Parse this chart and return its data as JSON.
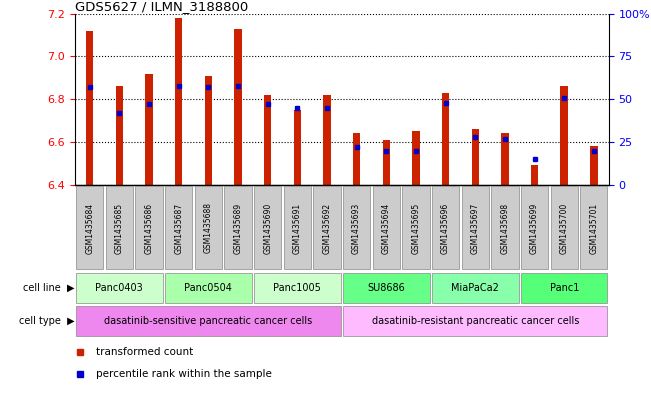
{
  "title": "GDS5627 / ILMN_3188800",
  "samples": [
    "GSM1435684",
    "GSM1435685",
    "GSM1435686",
    "GSM1435687",
    "GSM1435688",
    "GSM1435689",
    "GSM1435690",
    "GSM1435691",
    "GSM1435692",
    "GSM1435693",
    "GSM1435694",
    "GSM1435695",
    "GSM1435696",
    "GSM1435697",
    "GSM1435698",
    "GSM1435699",
    "GSM1435700",
    "GSM1435701"
  ],
  "transformed_count": [
    7.12,
    6.86,
    6.92,
    7.18,
    6.91,
    7.13,
    6.82,
    6.75,
    6.82,
    6.64,
    6.61,
    6.65,
    6.83,
    6.66,
    6.64,
    6.49,
    6.86,
    6.58
  ],
  "percentile_rank": [
    57,
    42,
    47,
    58,
    57,
    58,
    47,
    45,
    45,
    22,
    20,
    20,
    48,
    28,
    27,
    15,
    51,
    20
  ],
  "ylim": [
    6.4,
    7.2
  ],
  "yticks": [
    6.4,
    6.6,
    6.8,
    7.0,
    7.2
  ],
  "right_yticks": [
    0,
    25,
    50,
    75,
    100
  ],
  "right_ytick_labels": [
    "0",
    "25",
    "50",
    "75",
    "100%"
  ],
  "cell_line_groups": [
    {
      "label": "Panc0403",
      "start": 0,
      "end": 2,
      "color": "#ccffcc"
    },
    {
      "label": "Panc0504",
      "start": 3,
      "end": 5,
      "color": "#aaffaa"
    },
    {
      "label": "Panc1005",
      "start": 6,
      "end": 8,
      "color": "#ccffcc"
    },
    {
      "label": "SU8686",
      "start": 9,
      "end": 11,
      "color": "#66ff88"
    },
    {
      "label": "MiaPaCa2",
      "start": 12,
      "end": 14,
      "color": "#88ffaa"
    },
    {
      "label": "Panc1",
      "start": 15,
      "end": 17,
      "color": "#55ff77"
    }
  ],
  "cell_type_groups": [
    {
      "label": "dasatinib-sensitive pancreatic cancer cells",
      "start": 0,
      "end": 8,
      "color": "#ee88ee"
    },
    {
      "label": "dasatinib-resistant pancreatic cancer cells",
      "start": 9,
      "end": 17,
      "color": "#ffbbff"
    }
  ],
  "bar_color": "#cc2200",
  "percentile_color": "#0000cc",
  "bar_bottom": 6.4,
  "bar_width": 0.25,
  "sample_box_color": "#cccccc",
  "legend_items": [
    {
      "label": "transformed count",
      "color": "#cc2200"
    },
    {
      "label": "percentile rank within the sample",
      "color": "#0000cc"
    }
  ]
}
